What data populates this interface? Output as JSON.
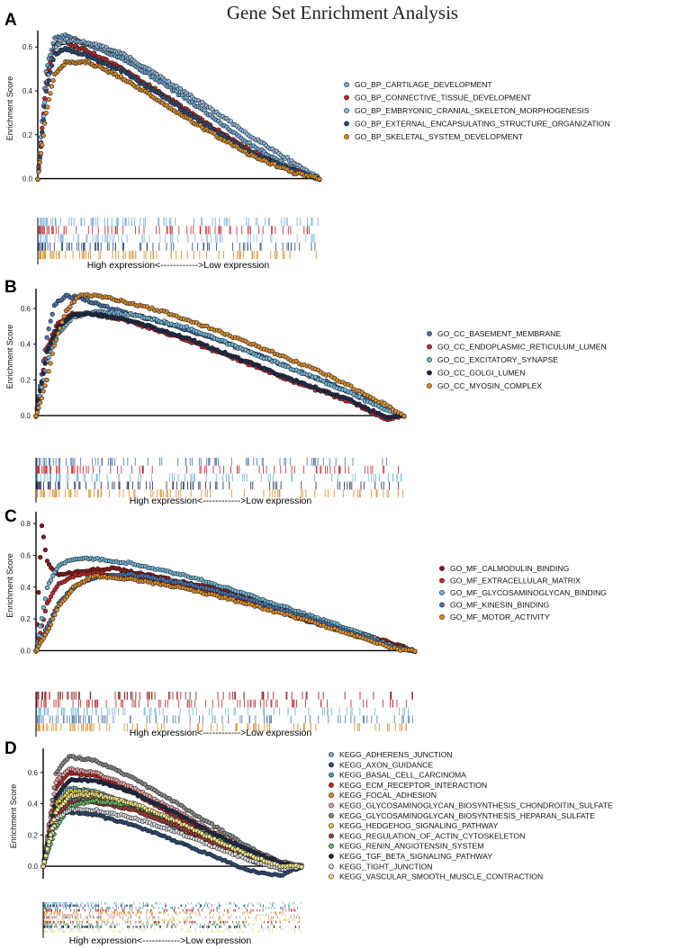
{
  "figure_title": "Gene Set Enrichment Analysis",
  "chart_data": [
    {
      "panel": "A",
      "type": "line",
      "ylabel": "Enrichment Score",
      "xcaption": "High expression<------------>Low expression",
      "yticks": [
        "0.0",
        "0.2",
        "0.4",
        "0.6"
      ],
      "ylim": [
        -0.01,
        0.65
      ],
      "legend_position": "right",
      "series": [
        {
          "name": "GO_BP_CARTILAGE_DEVELOPMENT",
          "color": "#6fa8d6",
          "x": [
            0,
            0.03,
            0.06,
            0.1,
            0.18,
            0.3,
            0.45,
            0.6,
            0.75,
            0.9,
            1.0
          ],
          "y": [
            0,
            0.5,
            0.64,
            0.65,
            0.61,
            0.55,
            0.43,
            0.3,
            0.16,
            0.05,
            0.0
          ]
        },
        {
          "name": "GO_BP_CONNECTIVE_TISSUE_DEVELOPMENT",
          "color": "#c2272d",
          "x": [
            0,
            0.03,
            0.06,
            0.1,
            0.18,
            0.3,
            0.45,
            0.6,
            0.75,
            0.9,
            1.0
          ],
          "y": [
            0,
            0.45,
            0.61,
            0.62,
            0.58,
            0.5,
            0.38,
            0.25,
            0.13,
            0.04,
            0.0
          ]
        },
        {
          "name": "GO_BP_EMBRYONIC_CRANIAL_SKELETON_MORPHOGENESIS",
          "color": "#8fb8e0",
          "x": [
            0,
            0.03,
            0.06,
            0.1,
            0.18,
            0.3,
            0.45,
            0.6,
            0.75,
            0.9,
            1.0
          ],
          "y": [
            0,
            0.42,
            0.6,
            0.63,
            0.62,
            0.57,
            0.45,
            0.33,
            0.2,
            0.08,
            0.0
          ]
        },
        {
          "name": "GO_BP_EXTERNAL_ENCAPSULATING_STRUCTURE_ORGANIZATION",
          "color": "#2c4b78",
          "x": [
            0,
            0.03,
            0.06,
            0.1,
            0.18,
            0.3,
            0.45,
            0.6,
            0.75,
            0.9,
            1.0
          ],
          "y": [
            0,
            0.4,
            0.57,
            0.59,
            0.56,
            0.49,
            0.37,
            0.24,
            0.12,
            0.04,
            0.0
          ]
        },
        {
          "name": "GO_BP_SKELETAL_SYSTEM_DEVELOPMENT",
          "color": "#d98c2b",
          "x": [
            0,
            0.03,
            0.06,
            0.1,
            0.18,
            0.3,
            0.45,
            0.6,
            0.75,
            0.9,
            1.0
          ],
          "y": [
            0,
            0.3,
            0.48,
            0.53,
            0.53,
            0.46,
            0.34,
            0.22,
            0.11,
            0.03,
            0.0
          ]
        }
      ]
    },
    {
      "panel": "B",
      "type": "line",
      "ylabel": "Enrichment Score",
      "xcaption": "High expression<------------>Low expression",
      "yticks": [
        "0.0",
        "0.2",
        "0.4",
        "0.6"
      ],
      "ylim": [
        -0.02,
        0.68
      ],
      "legend_position": "right",
      "series": [
        {
          "name": "GO_CC_BASEMENT_MEMBRANE",
          "color": "#4a73b0",
          "x": [
            0,
            0.03,
            0.05,
            0.08,
            0.12,
            0.2,
            0.35,
            0.5,
            0.65,
            0.8,
            0.95,
            1.0
          ],
          "y": [
            0,
            0.45,
            0.62,
            0.67,
            0.66,
            0.6,
            0.52,
            0.42,
            0.3,
            0.18,
            0.04,
            0.0
          ]
        },
        {
          "name": "GO_CC_ENDOPLASMIC_RETICULUM_LUMEN",
          "color": "#c2272d",
          "x": [
            0,
            0.03,
            0.06,
            0.1,
            0.15,
            0.25,
            0.4,
            0.55,
            0.7,
            0.85,
            0.95,
            1.0
          ],
          "y": [
            0,
            0.38,
            0.52,
            0.57,
            0.57,
            0.53,
            0.43,
            0.31,
            0.19,
            0.08,
            -0.02,
            0.0
          ]
        },
        {
          "name": "GO_CC_EXCITATORY_SYNAPSE",
          "color": "#6fb4d6",
          "x": [
            0,
            0.03,
            0.06,
            0.1,
            0.15,
            0.25,
            0.4,
            0.55,
            0.7,
            0.85,
            0.95,
            1.0
          ],
          "y": [
            0,
            0.3,
            0.46,
            0.55,
            0.58,
            0.57,
            0.5,
            0.38,
            0.26,
            0.13,
            0.03,
            0.0
          ]
        },
        {
          "name": "GO_CC_GOLGI_LUMEN",
          "color": "#1f2a4a",
          "x": [
            0,
            0.03,
            0.06,
            0.1,
            0.15,
            0.25,
            0.4,
            0.55,
            0.7,
            0.85,
            0.95,
            1.0
          ],
          "y": [
            0,
            0.36,
            0.5,
            0.56,
            0.57,
            0.54,
            0.44,
            0.32,
            0.2,
            0.09,
            -0.01,
            0.0
          ]
        },
        {
          "name": "GO_CC_MYOSIN_COMPLEX",
          "color": "#d98c2b",
          "x": [
            0,
            0.03,
            0.05,
            0.08,
            0.12,
            0.2,
            0.35,
            0.5,
            0.65,
            0.8,
            0.95,
            1.0
          ],
          "y": [
            0,
            0.2,
            0.4,
            0.58,
            0.68,
            0.66,
            0.58,
            0.47,
            0.35,
            0.22,
            0.06,
            0.0
          ]
        }
      ]
    },
    {
      "panel": "C",
      "type": "line",
      "ylabel": "Enrichment Score",
      "xcaption": "High expression<------------>Low expression",
      "yticks": [
        "0.0",
        "0.2",
        "0.4",
        "0.6",
        "0.8"
      ],
      "ylim": [
        -0.02,
        0.84
      ],
      "legend_position": "right",
      "series": [
        {
          "name": "GO_MF_CALMODULIN_BINDING",
          "color": "#8b1a1a",
          "x": [
            0,
            0.015,
            0.03,
            0.06,
            0.12,
            0.2,
            0.35,
            0.5,
            0.65,
            0.8,
            0.95,
            1.0
          ],
          "y": [
            0,
            0.8,
            0.55,
            0.48,
            0.5,
            0.52,
            0.45,
            0.38,
            0.27,
            0.15,
            0.04,
            0.0
          ]
        },
        {
          "name": "GO_MF_EXTRACELLULAR_MATRIX",
          "color": "#c2272d",
          "x": [
            0,
            0.03,
            0.06,
            0.1,
            0.15,
            0.25,
            0.4,
            0.55,
            0.7,
            0.85,
            0.95,
            1.0
          ],
          "y": [
            0,
            0.3,
            0.42,
            0.47,
            0.49,
            0.46,
            0.4,
            0.31,
            0.2,
            0.09,
            0.02,
            0.0
          ]
        },
        {
          "name": "GO_MF_GLYCOSAMINOGLYCAN_BINDING",
          "color": "#6fb4d6",
          "x": [
            0,
            0.03,
            0.06,
            0.1,
            0.15,
            0.25,
            0.4,
            0.55,
            0.7,
            0.85,
            0.95,
            1.0
          ],
          "y": [
            0,
            0.4,
            0.54,
            0.58,
            0.58,
            0.55,
            0.47,
            0.36,
            0.24,
            0.12,
            0.02,
            0.0
          ]
        },
        {
          "name": "GO_MF_KINESIN_BINDING",
          "color": "#4a73b0",
          "x": [
            0,
            0.03,
            0.06,
            0.1,
            0.15,
            0.25,
            0.4,
            0.55,
            0.7,
            0.85,
            0.95,
            1.0
          ],
          "y": [
            0,
            0.15,
            0.3,
            0.4,
            0.46,
            0.48,
            0.42,
            0.33,
            0.22,
            0.1,
            0.02,
            0.0
          ]
        },
        {
          "name": "GO_MF_MOTOR_ACTIVITY",
          "color": "#d98c2b",
          "x": [
            0,
            0.03,
            0.06,
            0.1,
            0.15,
            0.25,
            0.4,
            0.55,
            0.7,
            0.85,
            0.95,
            1.0
          ],
          "y": [
            0,
            0.12,
            0.28,
            0.4,
            0.47,
            0.45,
            0.39,
            0.3,
            0.2,
            0.09,
            0.01,
            0.0
          ]
        }
      ]
    },
    {
      "panel": "D",
      "type": "line",
      "ylabel": "Enrichment Score",
      "xcaption": "High expression<------------>Low expression",
      "yticks": [
        "0.0",
        "0.2",
        "0.4",
        "0.6"
      ],
      "ylim": [
        -0.08,
        0.72
      ],
      "legend_position": "right",
      "series": [
        {
          "name": "KEGG_ADHERENS_JUNCTION",
          "color": "#6fb4d6",
          "x": [
            0,
            0.05,
            0.1,
            0.2,
            0.35,
            0.5,
            0.65,
            0.8,
            0.92,
            1.0
          ],
          "y": [
            0,
            0.42,
            0.5,
            0.48,
            0.38,
            0.26,
            0.14,
            0.04,
            -0.02,
            0.0
          ]
        },
        {
          "name": "KEGG_AXON_GUIDANCE",
          "color": "#2c4b78",
          "x": [
            0,
            0.05,
            0.1,
            0.2,
            0.35,
            0.5,
            0.65,
            0.8,
            0.92,
            1.0
          ],
          "y": [
            0,
            0.3,
            0.35,
            0.33,
            0.26,
            0.17,
            0.07,
            -0.03,
            -0.06,
            0.0
          ]
        },
        {
          "name": "KEGG_BASAL_CELL_CARCINOMA",
          "color": "#4a9ab5",
          "x": [
            0,
            0.05,
            0.1,
            0.2,
            0.35,
            0.5,
            0.65,
            0.8,
            0.92,
            1.0
          ],
          "y": [
            0,
            0.38,
            0.44,
            0.43,
            0.37,
            0.28,
            0.16,
            0.06,
            0.0,
            0.0
          ]
        },
        {
          "name": "KEGG_ECM_RECEPTOR_INTERACTION",
          "color": "#c2272d",
          "x": [
            0,
            0.05,
            0.1,
            0.2,
            0.35,
            0.5,
            0.65,
            0.8,
            0.92,
            1.0
          ],
          "y": [
            0,
            0.5,
            0.6,
            0.58,
            0.47,
            0.33,
            0.19,
            0.07,
            0.0,
            0.0
          ]
        },
        {
          "name": "KEGG_FOCAL_ADHESION",
          "color": "#d98c2b",
          "x": [
            0,
            0.05,
            0.1,
            0.2,
            0.35,
            0.5,
            0.65,
            0.8,
            0.92,
            1.0
          ],
          "y": [
            0,
            0.36,
            0.45,
            0.45,
            0.38,
            0.27,
            0.15,
            0.05,
            -0.01,
            0.0
          ]
        },
        {
          "name": "KEGG_GLYCOSAMINOGLYCAN_BIOSYNTHESIS_CHONDROITIN_SULFATE",
          "color": "#e8a0a0",
          "x": [
            0,
            0.05,
            0.1,
            0.2,
            0.35,
            0.5,
            0.65,
            0.8,
            0.92,
            1.0
          ],
          "y": [
            0,
            0.55,
            0.62,
            0.6,
            0.5,
            0.37,
            0.23,
            0.1,
            0.02,
            0.0
          ]
        },
        {
          "name": "KEGG_GLYCOSAMINOGLYCAN_BIOSYNTHESIS_HEPARAN_SULFATE",
          "color": "#8a8a8a",
          "x": [
            0,
            0.05,
            0.1,
            0.2,
            0.35,
            0.5,
            0.65,
            0.8,
            0.92,
            1.0
          ],
          "y": [
            0,
            0.6,
            0.7,
            0.68,
            0.56,
            0.42,
            0.27,
            0.12,
            0.03,
            0.0
          ]
        },
        {
          "name": "KEGG_HEDGEHOG_SIGNALING_PATHWAY",
          "color": "#e0d24a",
          "x": [
            0,
            0.05,
            0.1,
            0.2,
            0.35,
            0.5,
            0.65,
            0.8,
            0.92,
            1.0
          ],
          "y": [
            0,
            0.4,
            0.48,
            0.47,
            0.4,
            0.29,
            0.17,
            0.06,
            0.0,
            0.0
          ]
        },
        {
          "name": "KEGG_REGULATION_OF_ACTIN_CYTOSKELETON",
          "color": "#a83a3a",
          "x": [
            0,
            0.05,
            0.1,
            0.2,
            0.35,
            0.5,
            0.65,
            0.8,
            0.92,
            1.0
          ],
          "y": [
            0,
            0.32,
            0.4,
            0.41,
            0.36,
            0.27,
            0.16,
            0.06,
            0.0,
            0.0
          ]
        },
        {
          "name": "KEGG_RENIN_ANGIOTENSIN_SYSTEM",
          "color": "#6bb86b",
          "x": [
            0,
            0.05,
            0.1,
            0.2,
            0.35,
            0.5,
            0.65,
            0.8,
            0.92,
            1.0
          ],
          "y": [
            0,
            0.25,
            0.38,
            0.42,
            0.39,
            0.3,
            0.19,
            0.08,
            0.01,
            0.0
          ]
        },
        {
          "name": "KEGG_TGF_BETA_SIGNALING_PATHWAY",
          "color": "#1f2a4a",
          "x": [
            0,
            0.05,
            0.1,
            0.2,
            0.35,
            0.5,
            0.65,
            0.8,
            0.92,
            1.0
          ],
          "y": [
            0,
            0.45,
            0.55,
            0.55,
            0.47,
            0.35,
            0.22,
            0.1,
            0.02,
            0.0
          ]
        },
        {
          "name": "KEGG_TIGHT_JUNCTION",
          "color": "#d9d9d9",
          "x": [
            0,
            0.05,
            0.1,
            0.2,
            0.35,
            0.5,
            0.65,
            0.8,
            0.92,
            1.0
          ],
          "y": [
            0,
            0.3,
            0.36,
            0.36,
            0.31,
            0.23,
            0.13,
            0.04,
            -0.02,
            0.0
          ]
        },
        {
          "name": "KEGG_VASCULAR_SMOOTH_MUSCLE_CONTRACTION",
          "color": "#f0e68c",
          "x": [
            0,
            0.05,
            0.1,
            0.2,
            0.35,
            0.5,
            0.65,
            0.8,
            0.92,
            1.0
          ],
          "y": [
            0,
            0.35,
            0.45,
            0.46,
            0.4,
            0.3,
            0.18,
            0.07,
            0.0,
            0.0
          ]
        }
      ]
    }
  ]
}
